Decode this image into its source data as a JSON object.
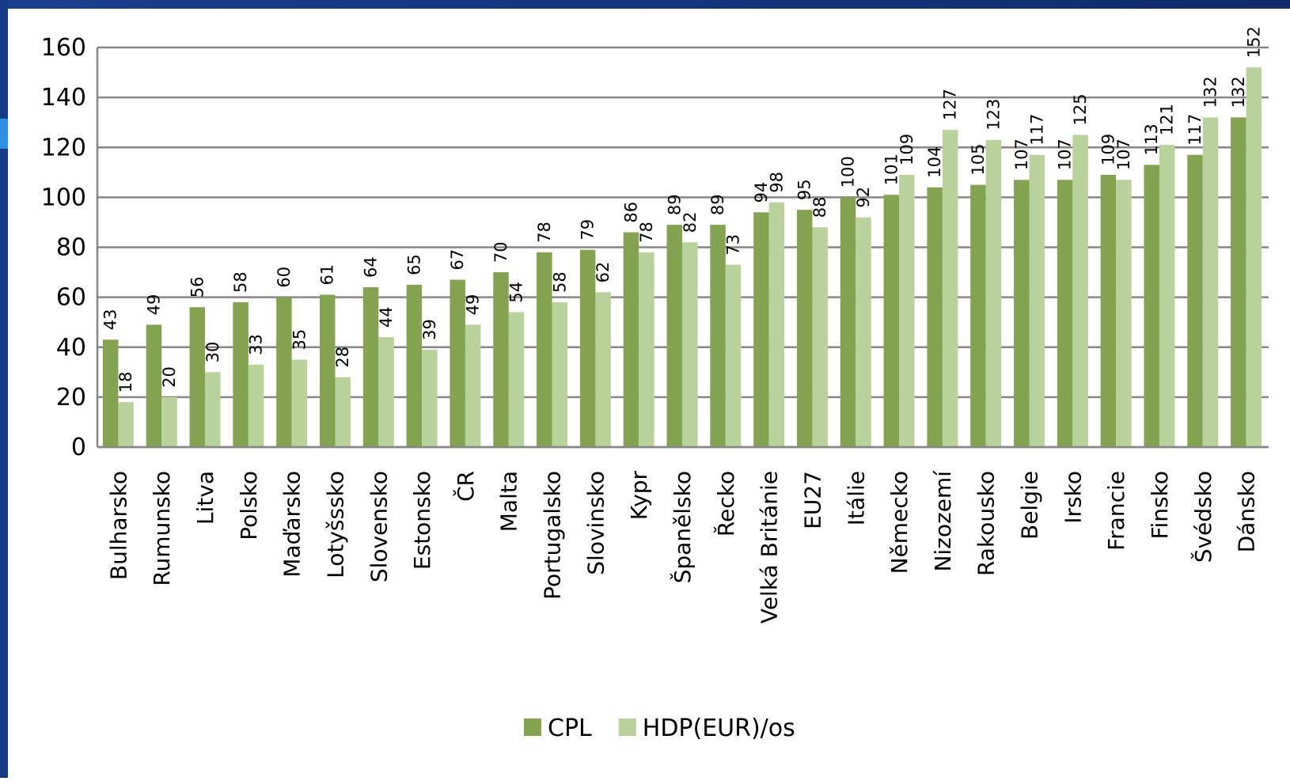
{
  "chart_data": {
    "type": "bar",
    "categories": [
      "Bulharsko",
      "Rumunsko",
      "Litva",
      "Polsko",
      "Maďarsko",
      "Lotyšssko",
      "Slovensko",
      "Estonsko",
      "ČR",
      "Malta",
      "Portugalsko",
      "Slovinsko",
      "Kypr",
      "Španělsko",
      "Řecko",
      "Velká Británie",
      "EU27",
      "Itálie",
      "Německo",
      "Nizozemí",
      "Rakousko",
      "Belgie",
      "Irsko",
      "Francie",
      "Finsko",
      "Švédsko",
      "Dánsko"
    ],
    "series": [
      {
        "name": "CPL",
        "color": "#84a351",
        "values": [
          43,
          49,
          56,
          58,
          60,
          61,
          64,
          65,
          67,
          70,
          78,
          79,
          86,
          89,
          89,
          94,
          95,
          100,
          101,
          104,
          105,
          107,
          107,
          109,
          113,
          117,
          132
        ]
      },
      {
        "name": "HDP(EUR)/os",
        "color": "#b9d19a",
        "values": [
          18,
          20,
          30,
          33,
          35,
          28,
          44,
          39,
          49,
          54,
          58,
          62,
          78,
          82,
          73,
          98,
          88,
          92,
          109,
          127,
          123,
          117,
          125,
          107,
          121,
          132,
          152
        ]
      }
    ],
    "ylim": [
      0,
      160
    ],
    "yticks": [
      0,
      20,
      40,
      60,
      80,
      100,
      120,
      140,
      160
    ],
    "grid": true,
    "legend": "bottom"
  }
}
